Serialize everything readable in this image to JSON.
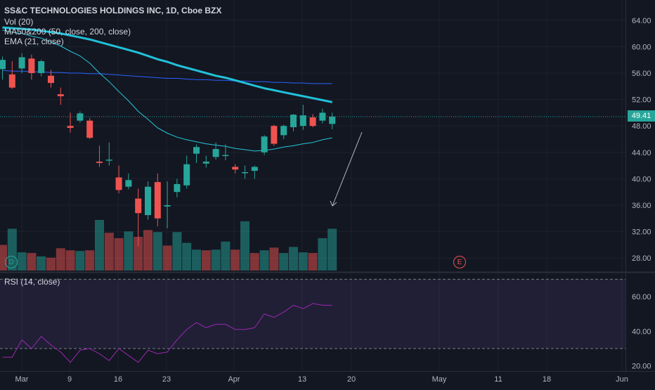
{
  "symbol": {
    "title": "SS&C TECHNOLOGIES HOLDINGS INC, 1D, Cboe BZX"
  },
  "indicators": {
    "volume_label": "Vol (20)",
    "ma_label": "MA50&200 (50, close, 200, close)",
    "ema_label": "EMA (21, close)",
    "rsi_label": "RSI (14, close)"
  },
  "last_price": "49.41",
  "event_markers": {
    "dividend": "D",
    "earnings": "E"
  },
  "colors": {
    "background": "#131722",
    "up": "#26a69a",
    "down": "#ef5350",
    "ma50": "#21c1d9",
    "ma200": "#2962ff",
    "ema": "#26c6da",
    "rsi_line": "#9c27b0",
    "rsi_band": "#7e57c2"
  },
  "chart_data": [
    {
      "type": "candlestick",
      "title": "SS&C TECHNOLOGIES HOLDINGS INC, 1D, Cboe BZX",
      "x_tick_labels": [
        "Mar",
        "9",
        "16",
        "23",
        "Apr",
        "13",
        "20",
        "May",
        "11",
        "18",
        "Jun"
      ],
      "y_tick_labels": [
        "64.00",
        "60.00",
        "56.00",
        "52.00",
        "48.00",
        "44.00",
        "40.00",
        "36.00",
        "32.00",
        "28.00"
      ],
      "ylim": [
        26,
        66
      ],
      "candles": [
        {
          "o": 56.6,
          "h": 58.5,
          "l": 55.0,
          "c": 58.0
        },
        {
          "o": 55.8,
          "h": 57.8,
          "l": 53.6,
          "c": 53.8
        },
        {
          "o": 56.7,
          "h": 59.0,
          "l": 56.0,
          "c": 58.4
        },
        {
          "o": 58.2,
          "h": 58.8,
          "l": 55.0,
          "c": 56.0
        },
        {
          "o": 56.0,
          "h": 58.0,
          "l": 55.5,
          "c": 57.8
        },
        {
          "o": 55.6,
          "h": 56.5,
          "l": 53.8,
          "c": 54.5
        },
        {
          "o": 52.8,
          "h": 53.8,
          "l": 51.2,
          "c": 52.5
        },
        {
          "o": 48.0,
          "h": 50.0,
          "l": 47.0,
          "c": 47.7
        },
        {
          "o": 48.8,
          "h": 50.2,
          "l": 48.5,
          "c": 49.9
        },
        {
          "o": 48.8,
          "h": 49.2,
          "l": 46.0,
          "c": 46.2
        },
        {
          "o": 42.6,
          "h": 45.0,
          "l": 41.8,
          "c": 42.4
        },
        {
          "o": 42.8,
          "h": 45.5,
          "l": 42.0,
          "c": 42.9
        },
        {
          "o": 40.2,
          "h": 42.0,
          "l": 37.8,
          "c": 38.3
        },
        {
          "o": 38.8,
          "h": 40.8,
          "l": 38.4,
          "c": 39.8
        },
        {
          "o": 37.0,
          "h": 38.5,
          "l": 29.8,
          "c": 34.8
        },
        {
          "o": 34.5,
          "h": 39.6,
          "l": 33.8,
          "c": 38.8
        },
        {
          "o": 39.5,
          "h": 40.8,
          "l": 32.8,
          "c": 34.0
        },
        {
          "o": 35.8,
          "h": 39.6,
          "l": 32.5,
          "c": 36.0
        },
        {
          "o": 38.0,
          "h": 40.0,
          "l": 37.2,
          "c": 39.2
        },
        {
          "o": 39.0,
          "h": 43.5,
          "l": 38.5,
          "c": 42.2
        },
        {
          "o": 43.8,
          "h": 45.2,
          "l": 42.4,
          "c": 44.8
        },
        {
          "o": 42.3,
          "h": 43.5,
          "l": 41.7,
          "c": 42.6
        },
        {
          "o": 43.3,
          "h": 45.5,
          "l": 42.9,
          "c": 44.5
        },
        {
          "o": 43.6,
          "h": 45.2,
          "l": 42.8,
          "c": 43.6
        },
        {
          "o": 41.8,
          "h": 42.2,
          "l": 40.8,
          "c": 41.4
        },
        {
          "o": 41.0,
          "h": 42.0,
          "l": 40.0,
          "c": 41.0
        },
        {
          "o": 41.2,
          "h": 42.0,
          "l": 40.0,
          "c": 41.8
        },
        {
          "o": 44.0,
          "h": 46.6,
          "l": 43.6,
          "c": 46.4
        },
        {
          "o": 48.0,
          "h": 48.2,
          "l": 45.0,
          "c": 45.3
        },
        {
          "o": 46.6,
          "h": 48.2,
          "l": 46.0,
          "c": 48.0
        },
        {
          "o": 47.8,
          "h": 49.8,
          "l": 47.2,
          "c": 49.7
        },
        {
          "o": 48.0,
          "h": 51.2,
          "l": 47.4,
          "c": 49.6
        },
        {
          "o": 49.3,
          "h": 49.8,
          "l": 47.8,
          "c": 48.0
        },
        {
          "o": 48.8,
          "h": 50.6,
          "l": 48.4,
          "c": 50.0
        },
        {
          "o": 48.3,
          "h": 50.0,
          "l": 47.5,
          "c": 49.41
        }
      ],
      "volume": [
        {
          "v": 0.38,
          "up": false
        },
        {
          "v": 0.62,
          "up": true
        },
        {
          "v": 0.27,
          "up": true
        },
        {
          "v": 0.26,
          "up": false
        },
        {
          "v": 0.21,
          "up": true
        },
        {
          "v": 0.19,
          "up": false
        },
        {
          "v": 0.33,
          "up": false
        },
        {
          "v": 0.3,
          "up": false
        },
        {
          "v": 0.29,
          "up": true
        },
        {
          "v": 0.3,
          "up": false
        },
        {
          "v": 0.75,
          "up": true
        },
        {
          "v": 0.56,
          "up": false
        },
        {
          "v": 0.48,
          "up": false
        },
        {
          "v": 0.58,
          "up": true
        },
        {
          "v": 0.5,
          "up": false
        },
        {
          "v": 0.6,
          "up": false
        },
        {
          "v": 0.57,
          "up": true
        },
        {
          "v": 0.37,
          "up": false
        },
        {
          "v": 0.57,
          "up": true
        },
        {
          "v": 0.41,
          "up": true
        },
        {
          "v": 0.31,
          "up": true
        },
        {
          "v": 0.3,
          "up": false
        },
        {
          "v": 0.31,
          "up": true
        },
        {
          "v": 0.43,
          "up": true
        },
        {
          "v": 0.31,
          "up": false
        },
        {
          "v": 0.73,
          "up": true
        },
        {
          "v": 0.26,
          "up": false
        },
        {
          "v": 0.3,
          "up": true
        },
        {
          "v": 0.34,
          "up": false
        },
        {
          "v": 0.26,
          "up": true
        },
        {
          "v": 0.35,
          "up": true
        },
        {
          "v": 0.27,
          "up": true
        },
        {
          "v": 0.26,
          "up": false
        },
        {
          "v": 0.48,
          "up": true
        },
        {
          "v": 0.62,
          "up": true
        }
      ],
      "ma50": [
        62.9,
        62.8,
        62.7,
        62.6,
        62.4,
        62.2,
        62.0,
        61.7,
        61.4,
        61.1,
        60.7,
        60.3,
        59.9,
        59.5,
        59.1,
        58.6,
        58.1,
        57.7,
        57.2,
        56.8,
        56.4,
        56.0,
        55.6,
        55.3,
        54.9,
        54.5,
        54.1,
        53.7,
        53.4,
        53.1,
        52.8,
        52.5,
        52.2,
        51.9,
        51.6
      ],
      "ma200": [
        56.4,
        56.3,
        56.3,
        56.2,
        56.2,
        56.1,
        56.1,
        56.0,
        56.0,
        55.9,
        55.9,
        55.8,
        55.7,
        55.6,
        55.5,
        55.4,
        55.3,
        55.2,
        55.2,
        55.1,
        55.0,
        55.0,
        54.9,
        54.9,
        54.8,
        54.8,
        54.7,
        54.7,
        54.6,
        54.6,
        54.5,
        54.5,
        54.4,
        54.4,
        54.4
      ],
      "ema21": [
        62.5,
        62.2,
        62.0,
        61.6,
        61.3,
        60.7,
        60.1,
        59.3,
        58.6,
        57.5,
        56.0,
        54.7,
        53.2,
        51.8,
        50.2,
        49.0,
        47.7,
        46.9,
        46.3,
        45.9,
        45.6,
        45.3,
        45.1,
        44.9,
        44.6,
        44.4,
        44.2,
        44.3,
        44.5,
        44.8,
        45.0,
        45.3,
        45.5,
        45.9,
        46.2
      ]
    },
    {
      "type": "line",
      "title": "RSI (14, close)",
      "y_tick_labels": [
        "60.00",
        "40.00",
        "20.00"
      ],
      "ylim": [
        17,
        73
      ],
      "bands": [
        70,
        30
      ],
      "values": [
        25,
        25,
        35,
        30,
        37,
        32,
        28,
        22,
        29,
        30,
        27,
        23,
        30,
        26,
        22,
        29,
        27,
        28,
        35,
        41,
        45,
        42,
        44,
        44,
        41,
        41,
        42,
        50,
        48,
        51,
        55,
        53,
        56,
        55,
        55
      ]
    }
  ]
}
